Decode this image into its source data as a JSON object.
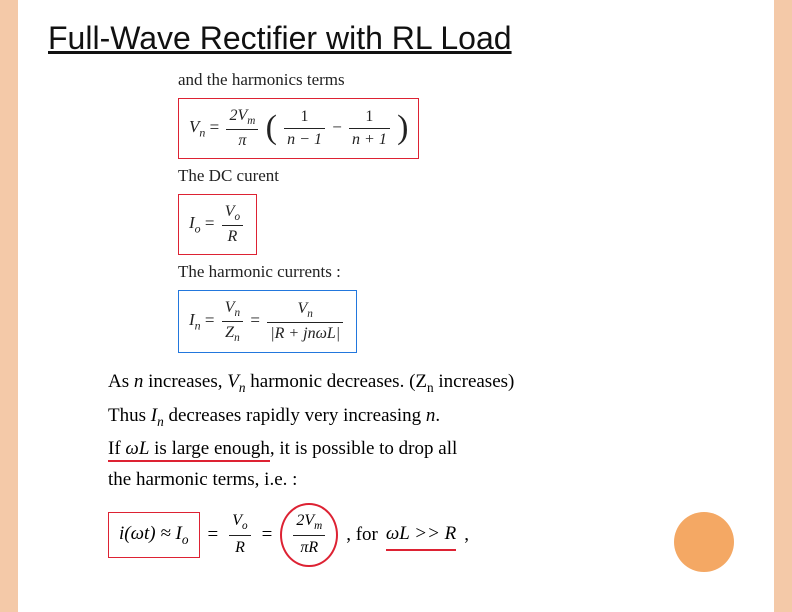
{
  "colors": {
    "accent_border": "#f4c9a8",
    "corner_circle": "#f4a864",
    "box_red": "#d23",
    "box_blue": "#27d",
    "text": "#222"
  },
  "title": "Full-Wave Rectifier with RL Load",
  "lines": {
    "l1": "and the harmonics terms",
    "vn_lhs": "V",
    "vn_sub": "n",
    "eq": " = ",
    "vn_num": "2V",
    "vn_num_sub": "m",
    "vn_den": "π",
    "f1_num": "1",
    "f1_den": "n − 1",
    "minus": " − ",
    "f2_num": "1",
    "f2_den": "n + 1",
    "l2": "The DC curent",
    "io_lhs": "I",
    "io_sub": "o",
    "io_num": "V",
    "io_num_sub": "o",
    "io_den": "R",
    "l3": "The harmonic currents :",
    "in_lhs": "I",
    "in_sub": "n",
    "in_num1": "V",
    "in_num1_sub": "n",
    "in_den1": "Z",
    "in_den1_sub": "n",
    "in_num2": "V",
    "in_num2_sub": "n",
    "in_den2": "|R + jnωL|"
  },
  "below": {
    "r1a": "As ",
    "r1b": "n",
    "r1c": " increases, ",
    "r1d": "V",
    "r1d_sub": "n",
    "r1e": " harmonic decreases.  (Z",
    "r1e_sub": "n",
    "r1f": " increases)",
    "r2a": "Thus ",
    "r2b": "I",
    "r2b_sub": "n",
    "r2c": " decreases rapidly very increasing ",
    "r2d": "n",
    "r2e": ".",
    "r3a": "If ",
    "r3b": "ωL",
    "r3c": " is large enough",
    "r3d": ", it is possible to drop all",
    "r4": "the harmonic terms, i.e. :",
    "fin_lhs": "i(ωt) ≈ I",
    "fin_lhs_sub": "o",
    "fin_f1_num": "V",
    "fin_f1_num_sub": "o",
    "fin_f1_den": "R",
    "fin_f2_num": "2V",
    "fin_f2_num_sub": "m",
    "fin_f2_den": "πR",
    "fin_tail": ",       for ",
    "fin_cond": "ωL >> R",
    "fin_comma": ","
  }
}
